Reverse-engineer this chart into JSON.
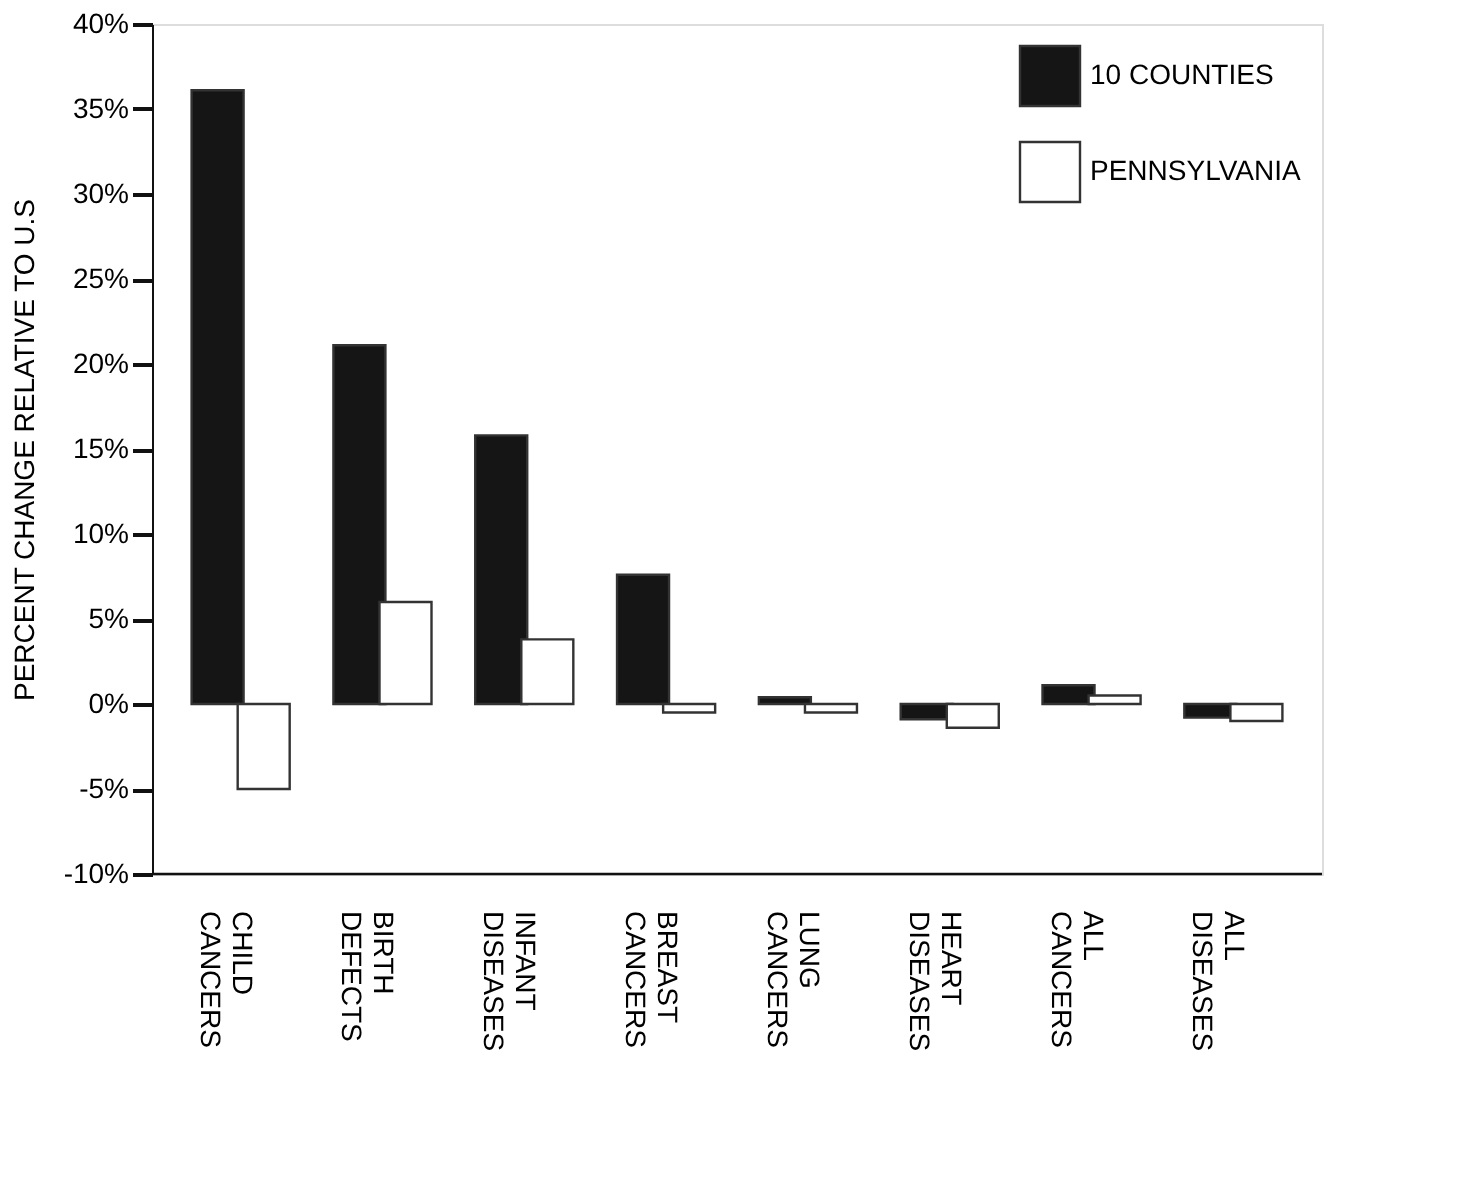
{
  "chart_data": {
    "type": "bar",
    "ylabel": "PERCENT CHANGE RELATIVE TO U.S",
    "categories": [
      "CHILD CANCERS",
      "BIRTH DEFECTS",
      "INFANT DISEASES",
      "BREAST CANCERS",
      "LUNG CANCERS",
      "HEART DISEASES",
      "ALL CANCERS",
      "ALL DISEASES"
    ],
    "series": [
      {
        "name": "10 COUNTIES",
        "color": "#151515",
        "values": [
          36.1,
          21.1,
          15.8,
          7.6,
          0.4,
          -0.9,
          1.1,
          -0.8
        ]
      },
      {
        "name": "PENNSYLVANIA",
        "color": "#ffffff",
        "values": [
          -5.0,
          6.0,
          3.8,
          -0.5,
          -0.5,
          -1.4,
          0.5,
          -1.0
        ]
      }
    ],
    "ylim": [
      -10,
      40
    ],
    "yticks": [
      {
        "value": -10,
        "label": "-10%"
      },
      {
        "value": -5,
        "label": "-5%"
      },
      {
        "value": 0,
        "label": "0%"
      },
      {
        "value": 5,
        "label": "5%"
      },
      {
        "value": 10,
        "label": "10%"
      },
      {
        "value": 15,
        "label": "15%"
      },
      {
        "value": 20,
        "label": "20%"
      },
      {
        "value": 25,
        "label": "25%"
      },
      {
        "value": 30,
        "label": "30%"
      },
      {
        "value": 35,
        "label": "35%"
      },
      {
        "value": 40,
        "label": "40%"
      }
    ],
    "grid": false,
    "legend": "top right"
  }
}
